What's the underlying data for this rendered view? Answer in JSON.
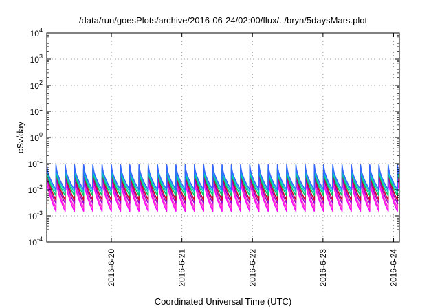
{
  "chart_data": {
    "type": "line",
    "title": "/data/run/goesPlots/archive/2016-06-24/02:00/flux/../bryn/5daysMars.plot",
    "xlabel": "Coordinated Universal Time (UTC)",
    "ylabel": "cSv/day",
    "yscale": "log",
    "ylim": [
      0.0001,
      10000
    ],
    "xlim": [
      "2016-06-19T02:00",
      "2016-06-24T02:00"
    ],
    "grid": true,
    "y_ticks": [
      {
        "base": "10",
        "exp": "-4"
      },
      {
        "base": "10",
        "exp": "-3"
      },
      {
        "base": "10",
        "exp": "-2"
      },
      {
        "base": "10",
        "exp": "-1"
      },
      {
        "base": "10",
        "exp": "0"
      },
      {
        "base": "10",
        "exp": "1"
      },
      {
        "base": "10",
        "exp": "2"
      },
      {
        "base": "10",
        "exp": "3"
      },
      {
        "base": "10",
        "exp": "4"
      }
    ],
    "x_ticks": [
      {
        "label": "2016-6-20",
        "t": "2016-06-20T00:00"
      },
      {
        "label": "2016-6-21",
        "t": "2016-06-21T00:00"
      },
      {
        "label": "2016-6-22",
        "t": "2016-06-22T00:00"
      },
      {
        "label": "2016-6-23",
        "t": "2016-06-23T00:00"
      },
      {
        "label": "2016-6-24",
        "t": "2016-06-24T00:00"
      }
    ],
    "sawtooth_period_hours": 3.14,
    "series": [
      {
        "color": "#ff00ff",
        "peak": 0.03,
        "trough": 0.0015
      },
      {
        "color": "#ff33cc",
        "peak": 0.04,
        "trough": 0.002
      },
      {
        "color": "#9900cc",
        "peak": 0.045,
        "trough": 0.003
      },
      {
        "color": "#cc0033",
        "peak": 0.06,
        "trough": 0.004
      },
      {
        "color": "#00cc66",
        "peak": 0.06,
        "trough": 0.006
      },
      {
        "color": "#00cccc",
        "peak": 0.07,
        "trough": 0.008
      },
      {
        "color": "#3366ff",
        "peak": 0.09,
        "trough": 0.01
      }
    ]
  }
}
